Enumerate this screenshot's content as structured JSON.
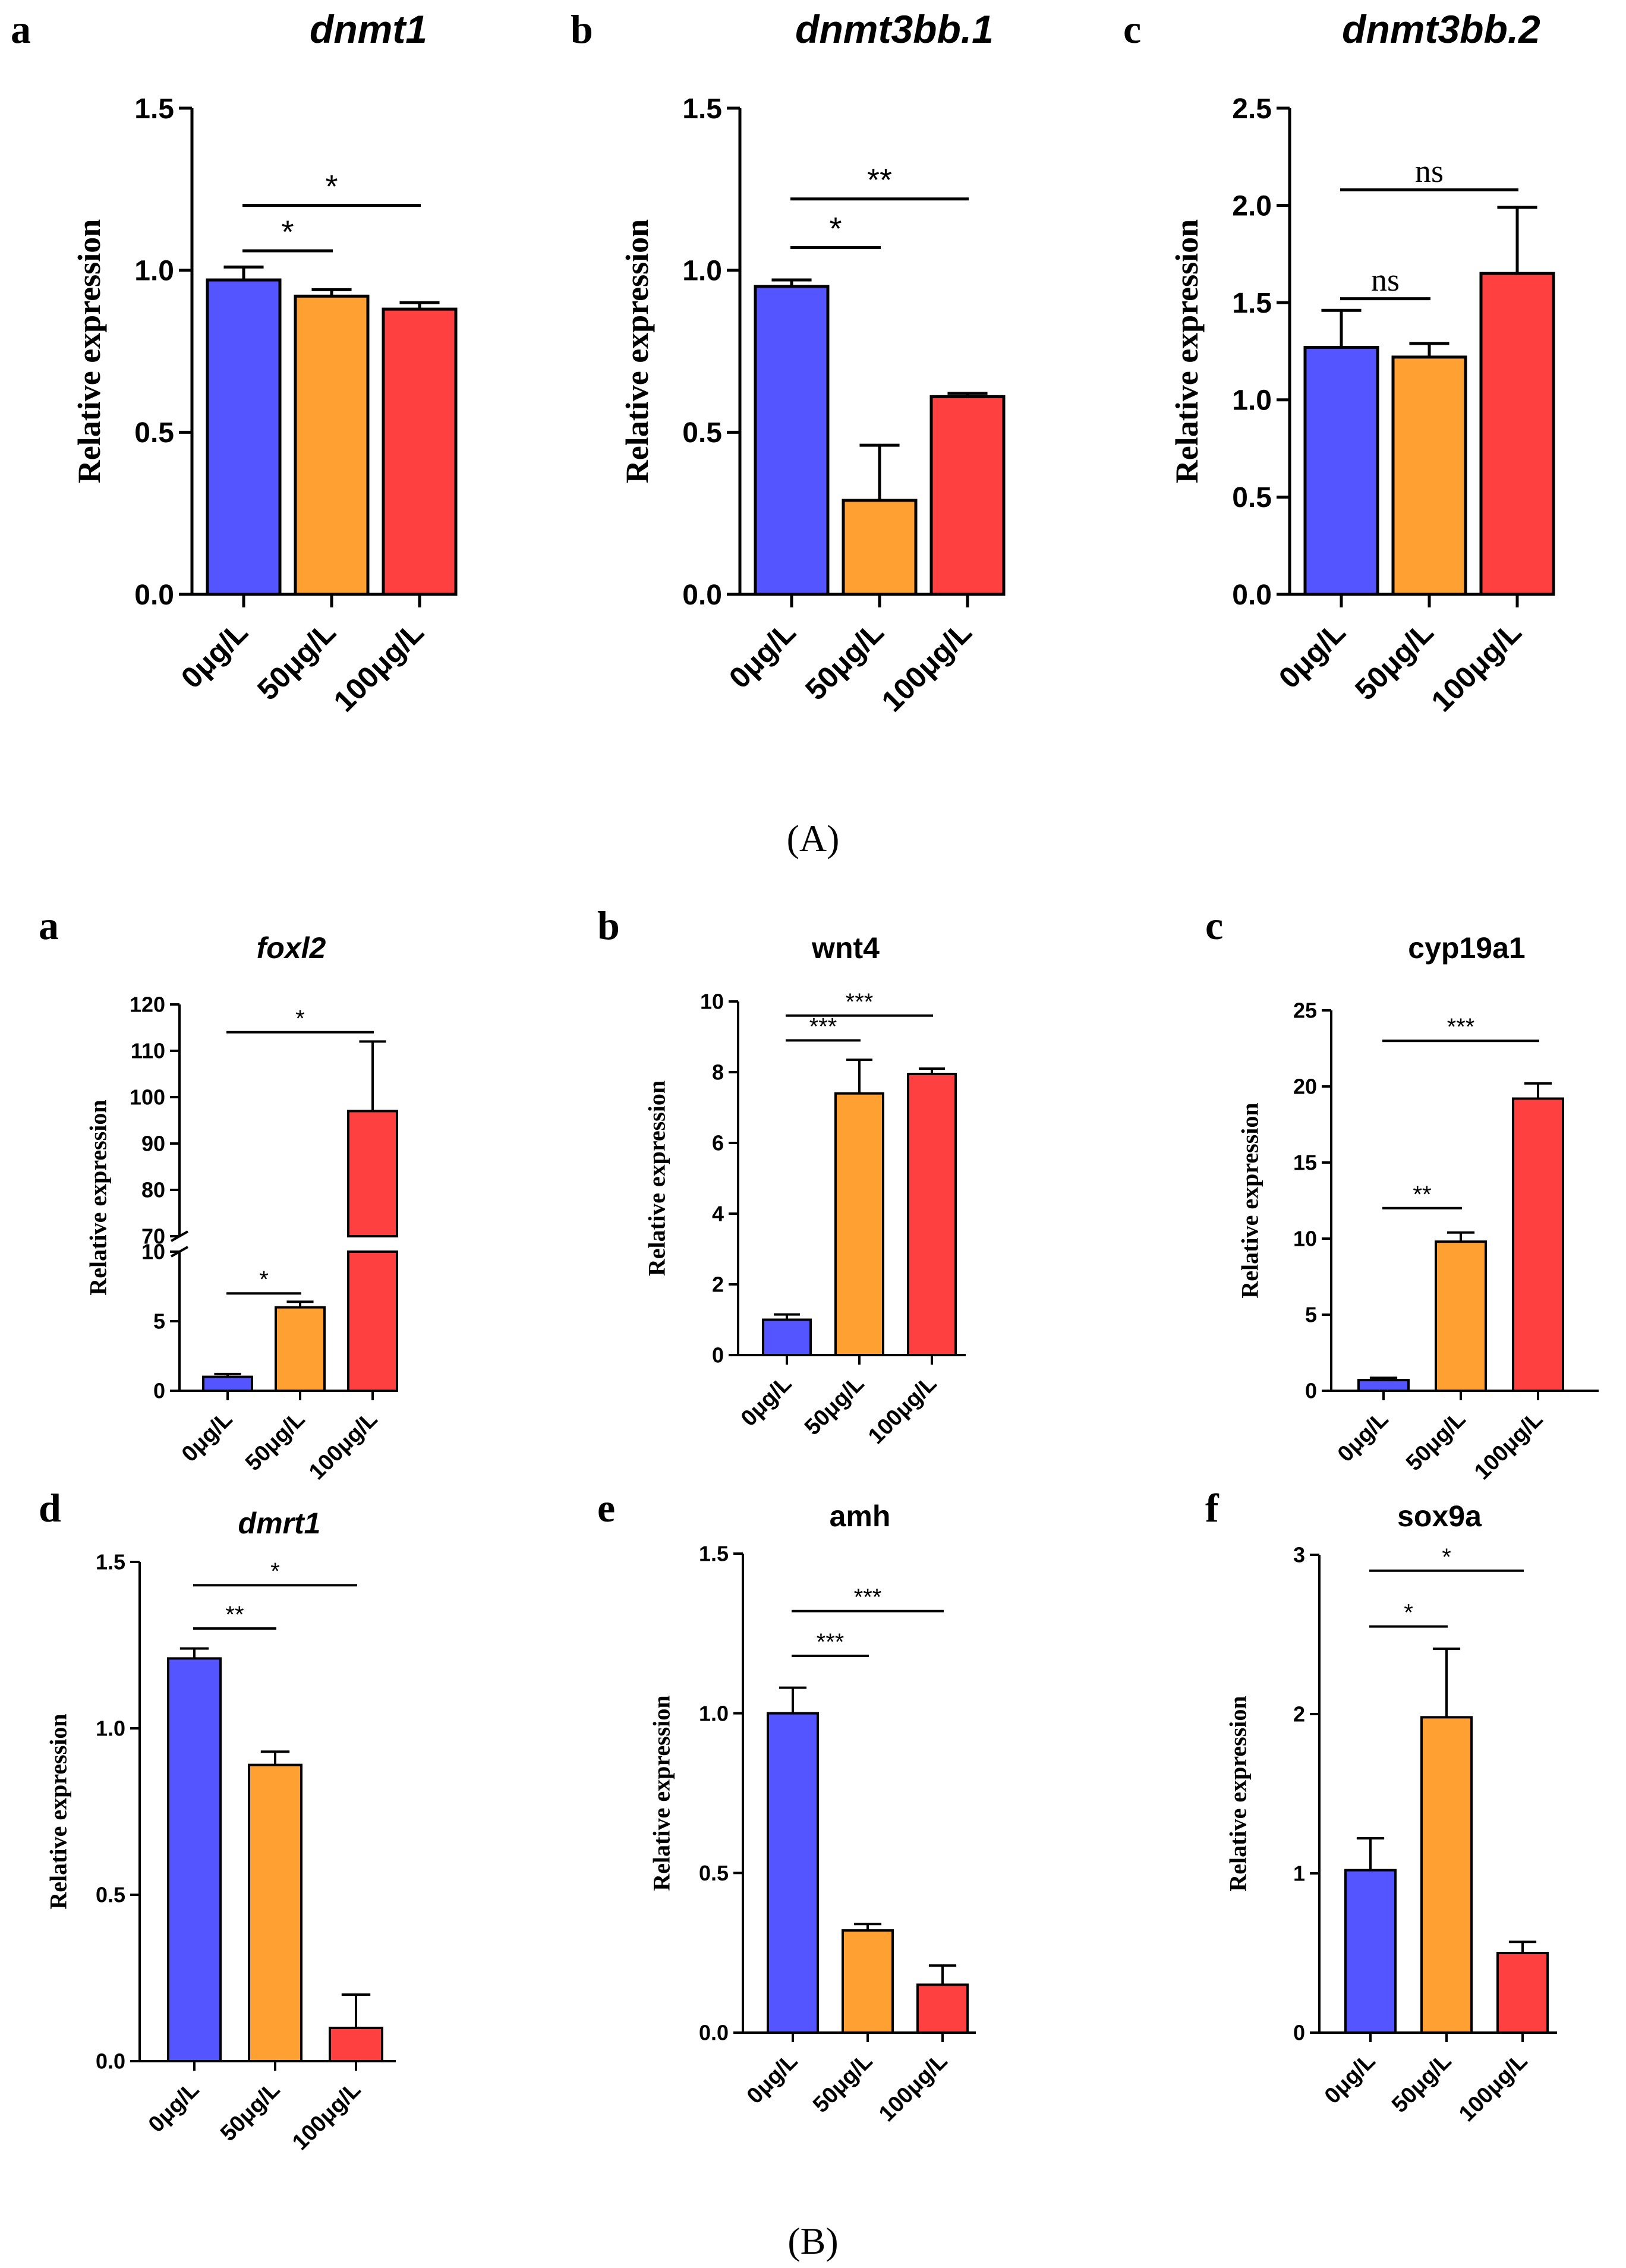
{
  "colors": {
    "g0": "#5555FF",
    "g1": "#FFA033",
    "g2": "#FF4040",
    "axis": "#000000"
  },
  "captions": {
    "groupA": "(A)",
    "groupB": "(B)"
  },
  "chart_data": [
    {
      "id": "A-a",
      "panel": "a",
      "type": "bar",
      "title": "dnmt1",
      "title_italic": true,
      "ylabel": "Relative expression",
      "categories": [
        "0μg/L",
        "50μg/L",
        "100μg/L"
      ],
      "values": [
        0.97,
        0.92,
        0.88
      ],
      "errors": [
        0.04,
        0.02,
        0.02
      ],
      "ylim": [
        0,
        1.5
      ],
      "yticks": [
        0.0,
        0.5,
        1.0,
        1.5
      ],
      "tick_labels": [
        "0.0",
        "0.5",
        "1.0",
        "1.5"
      ],
      "significance": [
        {
          "from": 0,
          "to": 1,
          "label": "*",
          "y": 1.06
        },
        {
          "from": 0,
          "to": 2,
          "label": "*",
          "y": 1.2
        }
      ]
    },
    {
      "id": "A-b",
      "panel": "b",
      "type": "bar",
      "title": "dnmt3bb.1",
      "title_italic": true,
      "ylabel": "Relative expression",
      "categories": [
        "0μg/L",
        "50μg/L",
        "100μg/L"
      ],
      "values": [
        0.95,
        0.29,
        0.61
      ],
      "errors": [
        0.02,
        0.17,
        0.01
      ],
      "ylim": [
        0,
        1.5
      ],
      "yticks": [
        0.0,
        0.5,
        1.0,
        1.5
      ],
      "tick_labels": [
        "0.0",
        "0.5",
        "1.0",
        "1.5"
      ],
      "significance": [
        {
          "from": 0,
          "to": 1,
          "label": "*",
          "y": 1.07
        },
        {
          "from": 0,
          "to": 2,
          "label": "**",
          "y": 1.22
        }
      ]
    },
    {
      "id": "A-c",
      "panel": "c",
      "type": "bar",
      "title": "dnmt3bb.2",
      "title_italic": true,
      "ylabel": "Relative expression",
      "categories": [
        "0μg/L",
        "50μg/L",
        "100μg/L"
      ],
      "values": [
        1.27,
        1.22,
        1.65
      ],
      "errors": [
        0.19,
        0.07,
        0.34
      ],
      "ylim": [
        0,
        2.5
      ],
      "yticks": [
        0.0,
        0.5,
        1.0,
        1.5,
        2.0,
        2.5
      ],
      "tick_labels": [
        "0.0",
        "0.5",
        "1.0",
        "1.5",
        "2.0",
        "2.5"
      ],
      "significance": [
        {
          "from": 0,
          "to": 1,
          "label": "ns",
          "y": 1.52,
          "serif": true
        },
        {
          "from": 0,
          "to": 2,
          "label": "ns",
          "y": 2.08,
          "serif": true
        }
      ]
    },
    {
      "id": "B-a",
      "panel": "a",
      "type": "bar",
      "title": "foxl2",
      "title_italic": true,
      "ylabel": "Relative expression",
      "categories": [
        "0μg/L",
        "50μg/L",
        "100μg/L"
      ],
      "values": [
        1.0,
        6.0,
        97.0
      ],
      "errors": [
        0.2,
        0.4,
        15.0
      ],
      "broken_axis": {
        "lower": [
          0,
          10
        ],
        "upper": [
          70,
          120
        ]
      },
      "yticks_lower": [
        0,
        5,
        10
      ],
      "tick_labels_lower": [
        "0",
        "5",
        "10"
      ],
      "yticks_upper": [
        70,
        80,
        90,
        100,
        110,
        120
      ],
      "tick_labels_upper": [
        "70",
        "80",
        "90",
        "100",
        "110",
        "120"
      ],
      "significance": [
        {
          "from": 0,
          "to": 1,
          "label": "*",
          "y": 7.0
        },
        {
          "from": 0,
          "to": 2,
          "label": "*",
          "y": 114.0
        }
      ]
    },
    {
      "id": "B-b",
      "panel": "b",
      "type": "bar",
      "title": "wnt4",
      "title_italic": false,
      "ylabel": "Relative expression",
      "categories": [
        "0μg/L",
        "50μg/L",
        "100μg/L"
      ],
      "values": [
        1.0,
        7.4,
        7.95
      ],
      "errors": [
        0.15,
        0.95,
        0.15
      ],
      "ylim": [
        0,
        10
      ],
      "yticks": [
        0,
        2,
        4,
        6,
        8,
        10
      ],
      "tick_labels": [
        "0",
        "2",
        "4",
        "6",
        "8",
        "10"
      ],
      "significance": [
        {
          "from": 0,
          "to": 1,
          "label": "***",
          "y": 8.9
        },
        {
          "from": 0,
          "to": 2,
          "label": "***",
          "y": 9.6
        }
      ]
    },
    {
      "id": "B-c",
      "panel": "c",
      "type": "bar",
      "title": "cyp19a1",
      "title_italic": false,
      "ylabel": "Relative expression",
      "categories": [
        "0μg/L",
        "50μg/L",
        "100μg/L"
      ],
      "values": [
        0.7,
        9.8,
        19.2
      ],
      "errors": [
        0.15,
        0.6,
        1.0
      ],
      "ylim": [
        0,
        25
      ],
      "yticks": [
        0,
        5,
        10,
        15,
        20,
        25
      ],
      "tick_labels": [
        "0",
        "5",
        "10",
        "15",
        "20",
        "25"
      ],
      "significance": [
        {
          "from": 0,
          "to": 1,
          "label": "**",
          "y": 12.0
        },
        {
          "from": 0,
          "to": 2,
          "label": "***",
          "y": 23.0
        }
      ]
    },
    {
      "id": "B-d",
      "panel": "d",
      "type": "bar",
      "title": "dmrt1",
      "title_italic": true,
      "ylabel": "Relative expression",
      "categories": [
        "0μg/L",
        "50μg/L",
        "100μg/L"
      ],
      "values": [
        1.21,
        0.89,
        0.1
      ],
      "errors": [
        0.03,
        0.04,
        0.1
      ],
      "ylim": [
        0,
        1.5
      ],
      "yticks": [
        0.0,
        0.5,
        1.0,
        1.5
      ],
      "tick_labels": [
        "0.0",
        "0.5",
        "1.0",
        "1.5"
      ],
      "significance": [
        {
          "from": 0,
          "to": 1,
          "label": "**",
          "y": 1.3
        },
        {
          "from": 0,
          "to": 2,
          "label": "*",
          "y": 1.43
        }
      ]
    },
    {
      "id": "B-e",
      "panel": "e",
      "type": "bar",
      "title": "amh",
      "title_italic": false,
      "ylabel": "Relative expression",
      "categories": [
        "0μg/L",
        "50μg/L",
        "100μg/L"
      ],
      "values": [
        1.0,
        0.32,
        0.15
      ],
      "errors": [
        0.08,
        0.02,
        0.06
      ],
      "ylim": [
        0,
        1.5
      ],
      "yticks": [
        0.0,
        0.5,
        1.0,
        1.5
      ],
      "tick_labels": [
        "0.0",
        "0.5",
        "1.0",
        "1.5"
      ],
      "significance": [
        {
          "from": 0,
          "to": 1,
          "label": "***",
          "y": 1.18
        },
        {
          "from": 0,
          "to": 2,
          "label": "***",
          "y": 1.32
        }
      ]
    },
    {
      "id": "B-f",
      "panel": "f",
      "type": "bar",
      "title": "sox9a",
      "title_italic": false,
      "ylabel": "Relative expression",
      "categories": [
        "0μg/L",
        "50μg/L",
        "100μg/L"
      ],
      "values": [
        1.02,
        1.98,
        0.5
      ],
      "errors": [
        0.2,
        0.43,
        0.07
      ],
      "ylim": [
        0,
        3
      ],
      "yticks": [
        0,
        1,
        2,
        3
      ],
      "tick_labels": [
        "0",
        "1",
        "2",
        "3"
      ],
      "significance": [
        {
          "from": 0,
          "to": 1,
          "label": "*",
          "y": 2.55
        },
        {
          "from": 0,
          "to": 2,
          "label": "*",
          "y": 2.9
        }
      ]
    }
  ]
}
